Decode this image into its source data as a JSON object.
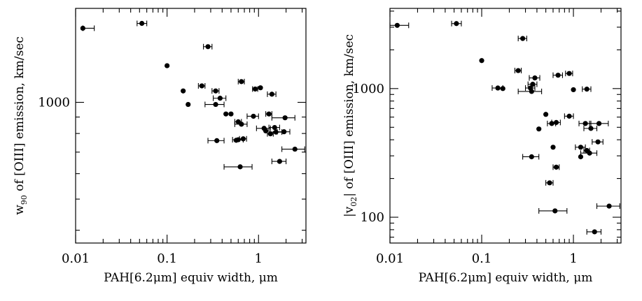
{
  "chart_data": [
    {
      "type": "scatter",
      "xlabel": "PAH[6.2μm] equiv width, μm",
      "ylabel_parts": {
        "var": "w",
        "sub": "90",
        "rest": " of [OIII] emission, km/sec"
      },
      "xscale": "log",
      "yscale": "log",
      "xlim": [
        0.01,
        3.3
      ],
      "ylim": [
        365,
        1960
      ],
      "xtick_labels": [
        {
          "value": 0.01,
          "label": "0.01"
        },
        {
          "value": 0.1,
          "label": "0.1"
        },
        {
          "value": 1,
          "label": "1"
        }
      ],
      "ytick_labels": [
        {
          "value": 1000,
          "label": "1000"
        }
      ],
      "points": [
        {
          "x": 0.012,
          "y": 1700,
          "xerr": [
            0.012,
            0.016
          ]
        },
        {
          "x": 0.053,
          "y": 1760,
          "xerr": [
            0.047,
            0.06
          ]
        },
        {
          "x": 0.28,
          "y": 1490,
          "xerr": [
            0.25,
            0.31
          ]
        },
        {
          "x": 0.1,
          "y": 1300
        },
        {
          "x": 0.65,
          "y": 1160,
          "xerr": [
            0.6,
            0.7
          ]
        },
        {
          "x": 0.24,
          "y": 1125,
          "xerr": [
            0.22,
            0.26
          ]
        },
        {
          "x": 0.15,
          "y": 1085
        },
        {
          "x": 0.34,
          "y": 1085,
          "xerr": [
            0.31,
            0.37
          ]
        },
        {
          "x": 1.05,
          "y": 1110
        },
        {
          "x": 0.92,
          "y": 1100,
          "xerr": [
            0.86,
            0.98
          ]
        },
        {
          "x": 1.4,
          "y": 1060,
          "xerr": [
            1.25,
            1.55
          ]
        },
        {
          "x": 0.38,
          "y": 1030,
          "xerr": [
            0.32,
            0.44
          ]
        },
        {
          "x": 0.17,
          "y": 985
        },
        {
          "x": 0.34,
          "y": 985,
          "xerr": [
            0.26,
            0.42
          ]
        },
        {
          "x": 0.44,
          "y": 920
        },
        {
          "x": 0.5,
          "y": 920
        },
        {
          "x": 1.3,
          "y": 920,
          "xerr": [
            1.2,
            1.4
          ]
        },
        {
          "x": 0.88,
          "y": 905,
          "xerr": [
            0.75,
            1.0
          ]
        },
        {
          "x": 1.95,
          "y": 895,
          "xerr": [
            1.4,
            2.5
          ]
        },
        {
          "x": 0.6,
          "y": 870,
          "xerr": [
            0.55,
            0.65
          ]
        },
        {
          "x": 0.65,
          "y": 855,
          "xerr": [
            0.55,
            0.75
          ]
        },
        {
          "x": 1.5,
          "y": 835,
          "xerr": [
            1.3,
            1.7
          ]
        },
        {
          "x": 1.15,
          "y": 830,
          "xerr": [
            0.95,
            1.35
          ]
        },
        {
          "x": 1.2,
          "y": 815
        },
        {
          "x": 1.9,
          "y": 810,
          "xerr": [
            1.6,
            2.2
          ]
        },
        {
          "x": 1.55,
          "y": 808,
          "xerr": [
            1.3,
            1.8
          ]
        },
        {
          "x": 1.35,
          "y": 798,
          "xerr": [
            1.25,
            1.45
          ]
        },
        {
          "x": 0.68,
          "y": 770,
          "xerr": [
            0.62,
            0.74
          ]
        },
        {
          "x": 0.6,
          "y": 765,
          "xerr": [
            0.52,
            0.68
          ]
        },
        {
          "x": 0.57,
          "y": 762
        },
        {
          "x": 0.35,
          "y": 760,
          "xerr": [
            0.28,
            0.42
          ]
        },
        {
          "x": 2.5,
          "y": 715,
          "xerr": [
            1.8,
            3.2
          ]
        },
        {
          "x": 1.7,
          "y": 655,
          "xerr": [
            1.4,
            2.0
          ]
        },
        {
          "x": 0.63,
          "y": 630,
          "xerr": [
            0.42,
            0.85
          ]
        }
      ]
    },
    {
      "type": "scatter",
      "xlabel": "PAH[6.2μm] equiv width, μm",
      "ylabel_parts": {
        "var": "|v",
        "sub": "02",
        "rest": "| of [OIII] emission, km/sec"
      },
      "xscale": "log",
      "yscale": "log",
      "xlim": [
        0.01,
        3.3
      ],
      "ylim": [
        63,
        4200
      ],
      "xtick_labels": [
        {
          "value": 0.01,
          "label": "0.01"
        },
        {
          "value": 0.1,
          "label": "0.1"
        },
        {
          "value": 1,
          "label": "1"
        }
      ],
      "ytick_labels": [
        {
          "value": 100,
          "label": "100"
        },
        {
          "value": 1000,
          "label": "1000"
        }
      ],
      "points": [
        {
          "x": 0.012,
          "y": 3100,
          "xerr": [
            0.01,
            0.016
          ]
        },
        {
          "x": 0.053,
          "y": 3200,
          "xerr": [
            0.047,
            0.06
          ]
        },
        {
          "x": 0.28,
          "y": 2450,
          "xerr": [
            0.25,
            0.31
          ]
        },
        {
          "x": 0.1,
          "y": 1650
        },
        {
          "x": 0.25,
          "y": 1380,
          "xerr": [
            0.23,
            0.27
          ]
        },
        {
          "x": 0.9,
          "y": 1310,
          "xerr": [
            0.82,
            0.98
          ]
        },
        {
          "x": 0.68,
          "y": 1270,
          "xerr": [
            0.6,
            0.76
          ]
        },
        {
          "x": 0.38,
          "y": 1210,
          "xerr": [
            0.33,
            0.43
          ]
        },
        {
          "x": 0.36,
          "y": 1080,
          "xerr": [
            0.32,
            0.4
          ]
        },
        {
          "x": 0.15,
          "y": 1010,
          "xerr": [
            0.13,
            0.17
          ]
        },
        {
          "x": 0.17,
          "y": 1000
        },
        {
          "x": 0.34,
          "y": 1010,
          "xerr": [
            0.3,
            0.38
          ]
        },
        {
          "x": 1.4,
          "y": 990,
          "xerr": [
            1.25,
            1.55
          ]
        },
        {
          "x": 1.0,
          "y": 980
        },
        {
          "x": 0.35,
          "y": 950,
          "xerr": [
            0.25,
            0.45
          ]
        },
        {
          "x": 0.5,
          "y": 630
        },
        {
          "x": 0.9,
          "y": 610,
          "xerr": [
            0.8,
            1.0
          ]
        },
        {
          "x": 0.65,
          "y": 545,
          "xerr": [
            0.58,
            0.72
          ]
        },
        {
          "x": 0.58,
          "y": 535,
          "xerr": [
            0.52,
            0.64
          ]
        },
        {
          "x": 1.35,
          "y": 535,
          "xerr": [
            1.15,
            1.55
          ]
        },
        {
          "x": 1.9,
          "y": 535,
          "xerr": [
            1.5,
            2.4
          ]
        },
        {
          "x": 1.55,
          "y": 490,
          "xerr": [
            1.3,
            1.8
          ]
        },
        {
          "x": 0.42,
          "y": 485
        },
        {
          "x": 1.85,
          "y": 385,
          "xerr": [
            1.6,
            2.1
          ]
        },
        {
          "x": 0.6,
          "y": 350
        },
        {
          "x": 1.2,
          "y": 350,
          "xerr": [
            1.05,
            1.35
          ]
        },
        {
          "x": 1.4,
          "y": 330,
          "xerr": [
            1.3,
            1.5
          ]
        },
        {
          "x": 1.5,
          "y": 315,
          "xerr": [
            1.2,
            1.8
          ]
        },
        {
          "x": 0.35,
          "y": 295,
          "xerr": [
            0.28,
            0.42
          ]
        },
        {
          "x": 1.2,
          "y": 295
        },
        {
          "x": 0.65,
          "y": 245,
          "xerr": [
            0.6,
            0.7
          ]
        },
        {
          "x": 0.55,
          "y": 185,
          "xerr": [
            0.5,
            0.6
          ]
        },
        {
          "x": 0.63,
          "y": 112,
          "xerr": [
            0.42,
            0.85
          ]
        },
        {
          "x": 2.45,
          "y": 122,
          "xerr": [
            1.8,
            3.2
          ]
        },
        {
          "x": 1.7,
          "y": 77,
          "xerr": [
            1.4,
            2.0
          ]
        }
      ]
    }
  ]
}
